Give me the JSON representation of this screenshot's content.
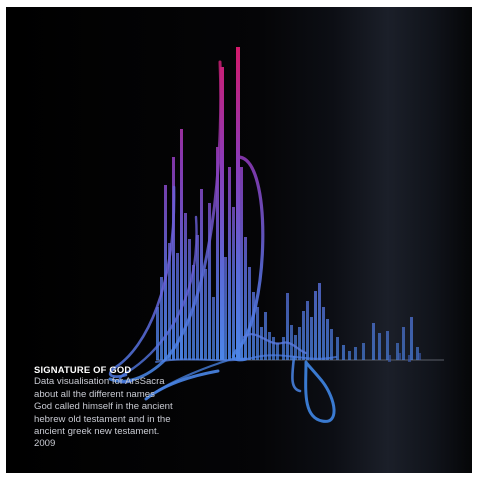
{
  "caption": {
    "title": "SIGNATURE OF GOD",
    "lines": [
      "Data visualisation for ArsSacra",
      "about all the different names",
      "God called himself in the ancient",
      "hebrew old testament and in the",
      "ancient greek new testament.",
      "2009"
    ]
  },
  "colors": {
    "background": "#000000",
    "top": "#d01c6c",
    "mid": "#7b3fd0",
    "bottom": "#4a86e8",
    "baseline": "#5a5e68"
  }
}
